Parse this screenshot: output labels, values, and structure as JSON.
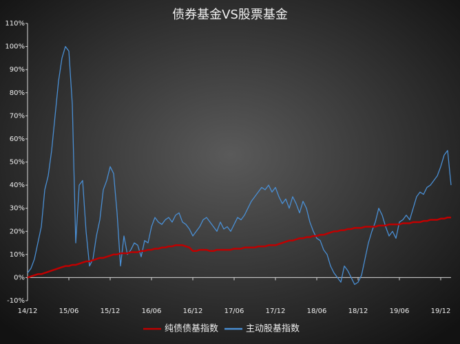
{
  "chart_data": {
    "type": "line",
    "title": "债券基金VS股票基金",
    "categories": [
      "14/12",
      null,
      null,
      null,
      null,
      null,
      null,
      null,
      null,
      null,
      null,
      null,
      "15/06",
      null,
      null,
      null,
      null,
      null,
      null,
      null,
      null,
      null,
      null,
      null,
      "15/12",
      null,
      null,
      null,
      null,
      null,
      null,
      null,
      null,
      null,
      null,
      null,
      "16/06",
      null,
      null,
      null,
      null,
      null,
      null,
      null,
      null,
      null,
      null,
      null,
      "16/12",
      null,
      null,
      null,
      null,
      null,
      null,
      null,
      null,
      null,
      null,
      null,
      "17/06",
      null,
      null,
      null,
      null,
      null,
      null,
      null,
      null,
      null,
      null,
      null,
      "17/12",
      null,
      null,
      null,
      null,
      null,
      null,
      null,
      null,
      null,
      null,
      null,
      "18/06",
      null,
      null,
      null,
      null,
      null,
      null,
      null,
      null,
      null,
      null,
      null,
      "18/12",
      null,
      null,
      null,
      null,
      null,
      null,
      null,
      null,
      null,
      null,
      null,
      "19/06",
      null,
      null,
      null,
      null,
      null,
      null,
      null,
      null,
      null,
      null,
      null,
      "19/12",
      null,
      null,
      null
    ],
    "series": [
      {
        "name": "纯债债基指数",
        "color": "#c00000",
        "width": 2.5,
        "values": [
          0,
          0.5,
          1,
          1.5,
          1.5,
          2,
          2.5,
          3,
          3.5,
          4,
          4.5,
          5,
          5,
          5.5,
          5.5,
          6,
          6.5,
          7,
          7,
          7.5,
          8,
          8.5,
          8.5,
          9,
          9.5,
          10,
          10,
          10.5,
          10.5,
          10.5,
          11,
          11,
          11,
          11.5,
          11.5,
          12,
          12,
          12.5,
          12.5,
          13,
          13,
          13.5,
          13.5,
          14,
          14,
          14,
          13.5,
          13,
          11.5,
          11.5,
          12,
          12,
          12,
          11.5,
          11.5,
          12,
          12,
          12,
          12,
          12,
          12.5,
          12.5,
          12.5,
          13,
          13,
          13,
          13,
          13.5,
          13.5,
          13.5,
          14,
          14,
          14,
          14.5,
          15,
          15.5,
          16,
          16,
          16.5,
          17,
          17,
          17.5,
          17.5,
          18,
          18,
          18.5,
          18.5,
          19,
          19.5,
          20,
          20,
          20.5,
          20.5,
          21,
          21,
          21.5,
          21.5,
          21.5,
          22,
          22,
          22,
          22,
          22.5,
          22.5,
          22.5,
          23,
          23,
          23,
          23,
          23.5,
          23.5,
          23.5,
          24,
          24,
          24,
          24.5,
          24.5,
          25,
          25,
          25,
          25.5,
          25.5,
          26,
          26
        ]
      },
      {
        "name": "主动股基指数",
        "color": "#4a8fd4",
        "width": 1.3,
        "values": [
          2,
          4,
          8,
          15,
          22,
          38,
          44,
          55,
          70,
          85,
          95,
          100,
          98,
          75,
          15,
          40,
          42,
          20,
          5,
          8,
          18,
          25,
          38,
          42,
          48,
          45,
          28,
          5,
          18,
          10,
          12,
          15,
          14,
          9,
          16,
          15,
          22,
          26,
          24,
          23,
          25,
          26,
          24,
          27,
          28,
          24,
          23,
          21,
          18,
          20,
          22,
          25,
          26,
          24,
          22,
          20,
          24,
          21,
          22,
          20,
          23,
          26,
          25,
          27,
          30,
          33,
          35,
          37,
          39,
          38,
          40,
          37,
          39,
          35,
          32,
          34,
          30,
          35,
          32,
          28,
          33,
          30,
          24,
          20,
          17,
          16,
          12,
          10,
          5,
          2,
          0,
          -2,
          5,
          3,
          0,
          -3,
          -2,
          1,
          8,
          15,
          20,
          24,
          30,
          27,
          22,
          18,
          20,
          17,
          24,
          25,
          27,
          25,
          30,
          35,
          37,
          36,
          39,
          40,
          42,
          44,
          48,
          53,
          55,
          40
        ]
      }
    ],
    "ylim": [
      -10,
      110
    ],
    "yticks": [
      {
        "value": -10,
        "label": "-10%"
      },
      {
        "value": 0,
        "label": "0%"
      },
      {
        "value": 10,
        "label": "10%"
      },
      {
        "value": 20,
        "label": "20%"
      },
      {
        "value": 30,
        "label": "30%"
      },
      {
        "value": 40,
        "label": "40%"
      },
      {
        "value": 50,
        "label": "50%"
      },
      {
        "value": 60,
        "label": "60%"
      },
      {
        "value": 70,
        "label": "70%"
      },
      {
        "value": 80,
        "label": "80%"
      },
      {
        "value": 90,
        "label": "90%"
      },
      {
        "value": 100,
        "label": "100%"
      },
      {
        "value": 110,
        "label": "110%"
      }
    ],
    "grid": false,
    "legend": "bottom"
  }
}
